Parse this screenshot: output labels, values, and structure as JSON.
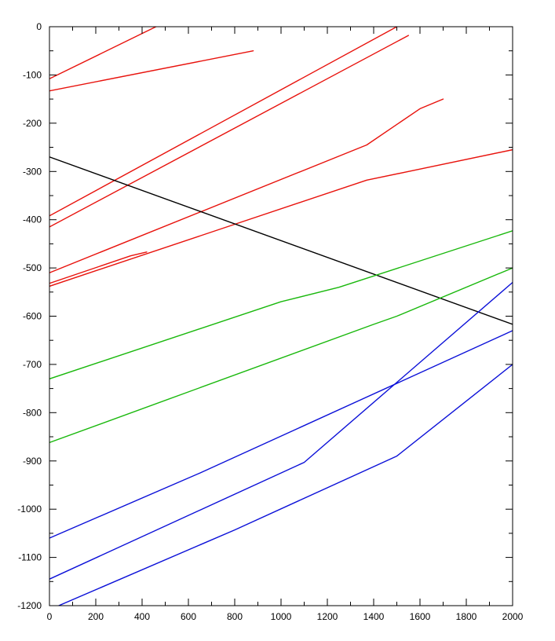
{
  "chart_data": {
    "type": "line",
    "title": "",
    "xlabel": "",
    "ylabel": "",
    "xlim": [
      0,
      2000
    ],
    "ylim": [
      -1200,
      0
    ],
    "xticks": [
      0,
      200,
      400,
      600,
      800,
      1000,
      1200,
      1400,
      1600,
      1800,
      2000
    ],
    "yticks": [
      0,
      -100,
      -200,
      -300,
      -400,
      -500,
      -600,
      -700,
      -800,
      -900,
      -1000,
      -1100,
      -1200
    ],
    "xtick_labels": [
      "0",
      "200",
      "400",
      "600",
      "800",
      "1000",
      "1200",
      "1400",
      "1600",
      "1800",
      "2000"
    ],
    "ytick_labels": [
      "0",
      "-100",
      "-200",
      "-300",
      "-400",
      "-500",
      "-600",
      "-700",
      "-800",
      "-900",
      "-1000",
      "-1100",
      "-1200"
    ],
    "grid": false,
    "legend": false,
    "colors": {
      "red": "#e8120c",
      "green": "#19b80c",
      "blue": "#0b10d8",
      "black": "#000000"
    },
    "series": [
      {
        "color": "#e8120c",
        "x": [
          0,
          460
        ],
        "y": [
          -108,
          0
        ]
      },
      {
        "color": "#e8120c",
        "x": [
          0,
          880
        ],
        "y": [
          -133,
          -50
        ]
      },
      {
        "color": "#e8120c",
        "x": [
          0,
          1500
        ],
        "y": [
          -392,
          0
        ]
      },
      {
        "color": "#e8120c",
        "x": [
          0,
          1550
        ],
        "y": [
          -415,
          -18
        ]
      },
      {
        "color": "#e8120c",
        "x": [
          0,
          1370,
          1600,
          1700
        ],
        "y": [
          -510,
          -245,
          -170,
          -150
        ]
      },
      {
        "color": "#e8120c",
        "x": [
          0,
          1370,
          1550,
          2000
        ],
        "y": [
          -538,
          -318,
          -300,
          -255
        ]
      },
      {
        "color": "#e8120c",
        "x": [
          0,
          350,
          420
        ],
        "y": [
          -532,
          -475,
          -467
        ]
      },
      {
        "color": "#000000",
        "x": [
          0,
          2000
        ],
        "y": [
          -270,
          -617
        ]
      },
      {
        "color": "#19b80c",
        "x": [
          0,
          1000,
          1250,
          2000
        ],
        "y": [
          -730,
          -570,
          -540,
          -423
        ]
      },
      {
        "color": "#19b80c",
        "x": [
          0,
          1400,
          1500,
          2000
        ],
        "y": [
          -862,
          -617,
          -600,
          -500
        ]
      },
      {
        "color": "#0b10d8",
        "x": [
          0,
          1100,
          2000
        ],
        "y": [
          -1145,
          -903,
          -530
        ]
      },
      {
        "color": "#0b10d8",
        "x": [
          0,
          650,
          2000
        ],
        "y": [
          -1060,
          -925,
          -630
        ]
      },
      {
        "color": "#0b10d8",
        "x": [
          40,
          800,
          1500,
          2000
        ],
        "y": [
          -1200,
          -1043,
          -890,
          -700
        ]
      }
    ]
  }
}
